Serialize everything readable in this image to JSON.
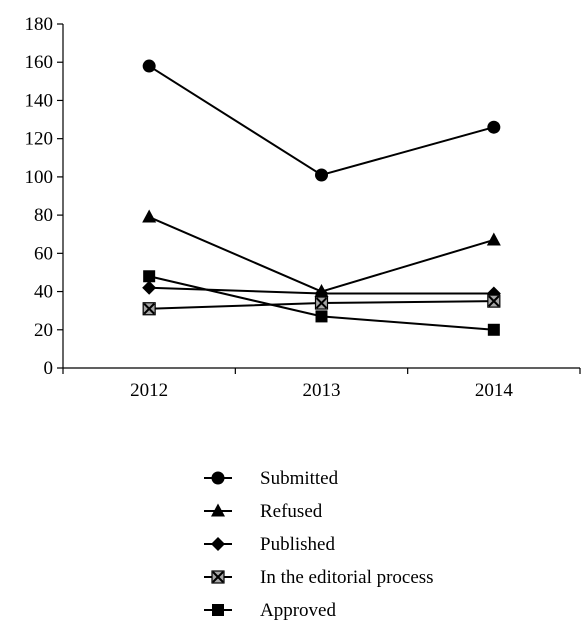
{
  "chart_data": {
    "type": "line",
    "categories": [
      "2012",
      "2013",
      "2014"
    ],
    "ylim": [
      0,
      180
    ],
    "yticks": [
      0,
      20,
      40,
      60,
      80,
      100,
      120,
      140,
      160,
      180
    ],
    "grid": false,
    "legend_placement": "bottom",
    "series": [
      {
        "name": "Submitted",
        "marker": "circle",
        "values": [
          158,
          101,
          126
        ]
      },
      {
        "name": "Refused",
        "marker": "triangle",
        "values": [
          79,
          40,
          67
        ]
      },
      {
        "name": "Published",
        "marker": "diamond",
        "values": [
          42,
          39,
          39
        ]
      },
      {
        "name": "In the editorial process",
        "marker": "x-square",
        "values": [
          31,
          34,
          35
        ]
      },
      {
        "name": "Approved",
        "marker": "square",
        "values": [
          48,
          27,
          20
        ]
      }
    ],
    "colors": {
      "line": "#000000",
      "marker": "#000000",
      "x_square_fill": "#a6a6a6"
    }
  }
}
